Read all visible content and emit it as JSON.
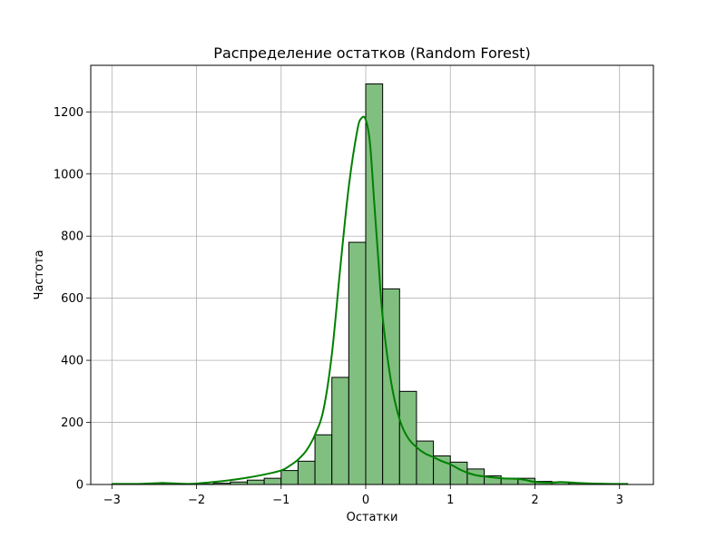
{
  "chart_data": {
    "type": "bar",
    "title": "Распределение остатков (Random Forest)",
    "xlabel": "Остатки",
    "ylabel": "Частота",
    "xlim": [
      -3.25,
      3.4
    ],
    "ylim": [
      0,
      1350
    ],
    "grid": true,
    "xticks": [
      -3,
      -2,
      -1,
      0,
      1,
      2,
      3
    ],
    "xtick_labels": [
      "−3",
      "−2",
      "−1",
      "0",
      "1",
      "2",
      "3"
    ],
    "yticks": [
      0,
      200,
      400,
      600,
      800,
      1000,
      1200
    ],
    "ytick_labels": [
      "0",
      "200",
      "400",
      "600",
      "800",
      "1000",
      "1200"
    ],
    "bin_edges": [
      -3.0,
      -2.8,
      -2.6,
      -2.4,
      -2.2,
      -2.0,
      -1.8,
      -1.6,
      -1.4,
      -1.2,
      -1.0,
      -0.8,
      -0.6,
      -0.4,
      -0.2,
      0.0,
      0.2,
      0.4,
      0.6,
      0.8,
      1.0,
      1.2,
      1.4,
      1.6,
      1.8,
      2.0,
      2.2,
      2.4,
      2.6,
      2.8,
      3.0,
      3.1
    ],
    "series": [
      {
        "kind": "histogram",
        "values": [
          1,
          0,
          1,
          1,
          0,
          1,
          4,
          8,
          14,
          20,
          45,
          75,
          160,
          345,
          780,
          1290,
          630,
          300,
          140,
          92,
          72,
          50,
          28,
          20,
          20,
          10,
          8,
          4,
          2,
          2,
          1
        ]
      },
      {
        "kind": "kde",
        "x": [
          -3.0,
          -2.7,
          -2.5,
          -2.4,
          -2.3,
          -2.1,
          -2.0,
          -1.8,
          -1.6,
          -1.4,
          -1.2,
          -1.0,
          -0.9,
          -0.8,
          -0.7,
          -0.6,
          -0.5,
          -0.4,
          -0.3,
          -0.2,
          -0.1,
          -0.05,
          0.0,
          0.05,
          0.1,
          0.15,
          0.2,
          0.3,
          0.4,
          0.5,
          0.6,
          0.7,
          0.8,
          0.9,
          1.0,
          1.1,
          1.2,
          1.3,
          1.4,
          1.6,
          1.8,
          1.9,
          2.0,
          2.2,
          2.3,
          2.5,
          2.7,
          2.9,
          3.1
        ],
        "y": [
          2,
          2,
          4,
          5,
          4,
          2,
          3,
          8,
          14,
          22,
          32,
          45,
          60,
          80,
          110,
          160,
          240,
          420,
          700,
          960,
          1140,
          1180,
          1175,
          1100,
          910,
          720,
          540,
          330,
          210,
          150,
          120,
          100,
          88,
          75,
          65,
          50,
          38,
          30,
          26,
          20,
          18,
          14,
          8,
          6,
          8,
          5,
          3,
          2,
          2
        ]
      }
    ]
  },
  "colors": {
    "bar_fill": "#80bf80",
    "kde_line": "#008000",
    "grid": "#b0b0b0"
  }
}
